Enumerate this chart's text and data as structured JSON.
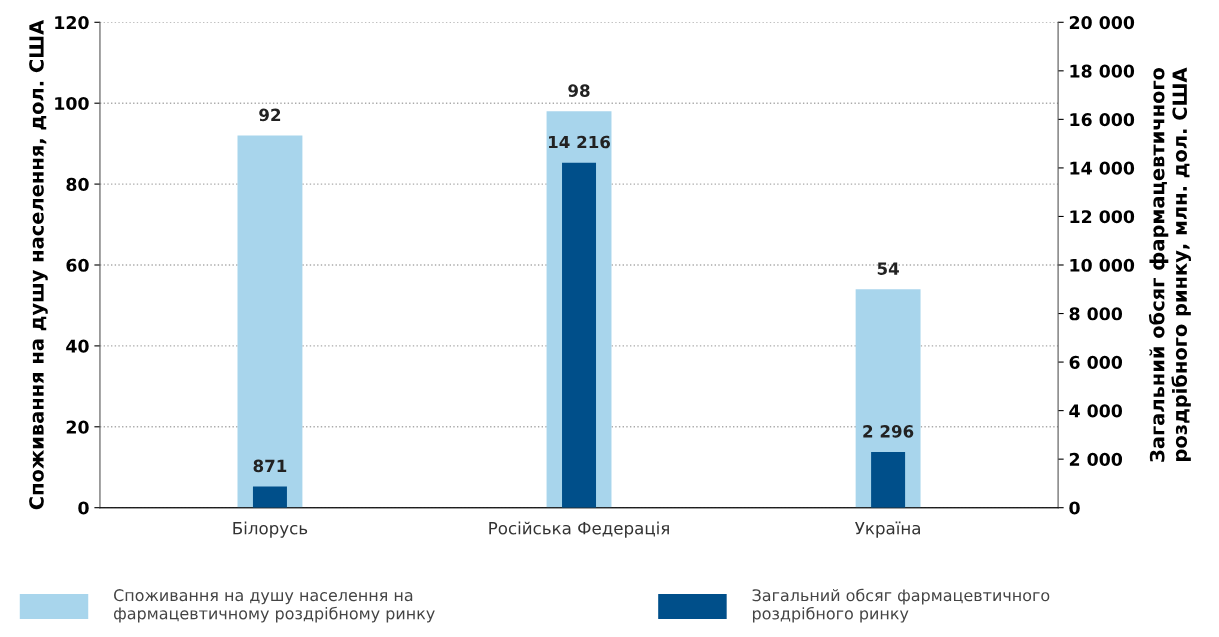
{
  "chart_data": {
    "type": "bar",
    "categories": [
      "Білорусь",
      "Російська Федерація",
      "Україна"
    ],
    "ylabel": "Споживання на душу населення, дол. США",
    "y2label": "Загальний обсяг фармацевтичного\nроздрібного ринку, млн. дол. США",
    "series": [
      {
        "name": "Споживання на душу населення на\nфармацевтичному роздрібному ринку",
        "color": "#a8d5ec",
        "values": [
          92,
          98,
          54
        ],
        "value_labels": [
          "92",
          "98",
          "54"
        ]
      },
      {
        "name": "Загальний обсяг фармацевтичного\nроздрібного ринку",
        "color": "#004f8a",
        "values": [
          871,
          14216,
          2296
        ],
        "value_labels": [
          "871",
          "14 216",
          "2 296"
        ],
        "axis": "y2"
      }
    ],
    "ylim": [
      0,
      120
    ],
    "yticks": [
      0,
      20,
      40,
      60,
      80,
      100,
      120
    ],
    "y2lim": [
      0,
      20000
    ],
    "y2ticks": [
      {
        "value": 0,
        "label": "0"
      },
      {
        "value": 2000,
        "label": "2 000"
      },
      {
        "value": 4000,
        "label": "4 000"
      },
      {
        "value": 6000,
        "label": "6 000"
      },
      {
        "value": 8000,
        "label": "8 000"
      },
      {
        "value": 10000,
        "label": "10 000"
      },
      {
        "value": 12000,
        "label": "12 000"
      },
      {
        "value": 14000,
        "label": "14 000"
      },
      {
        "value": 16000,
        "label": "16 000"
      },
      {
        "value": 18000,
        "label": "18 000"
      },
      {
        "value": 20000,
        "label": "20 000"
      }
    ],
    "grid": "y",
    "legend": "bottom"
  }
}
